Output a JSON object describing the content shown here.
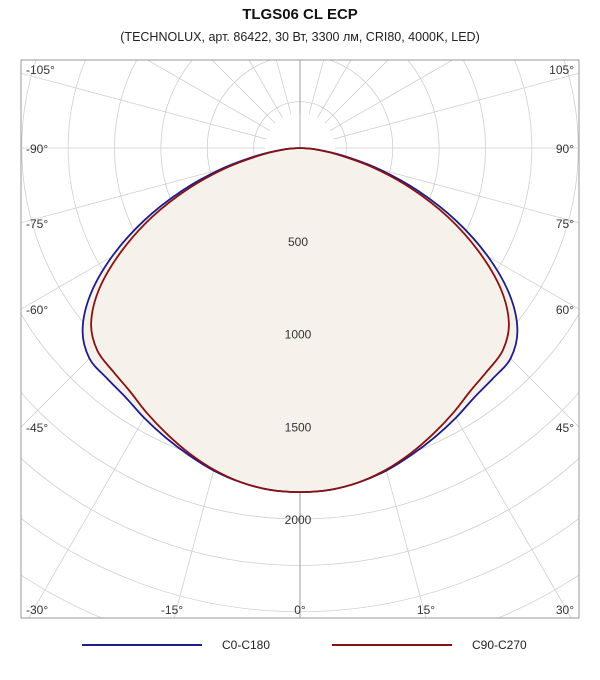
{
  "title": "TLGS06 CL ECP",
  "subtitle": "(TECHNOLUX, арт. 86422, 30 Вт, 3300 лм, CRI80, 4000K, LED)",
  "chart_data": {
    "type": "polar",
    "title": "TLGS06 CL ECP",
    "subtitle": "(TECHNOLUX, арт. 86422, 30 Вт, 3300 лм, CRI80, 4000K, LED)",
    "radial_ticks": [
      500,
      1000,
      1500,
      2000
    ],
    "radial_tick_labels": [
      "500",
      "1000",
      "1500",
      "2000"
    ],
    "angle_labels": {
      "left": [
        "-105°",
        "-90°",
        "-75°",
        "-60°",
        "-45°",
        "-30°",
        "-15°"
      ],
      "right": [
        "105°",
        "90°",
        "75°",
        "60°",
        "45°",
        "30°",
        "15°"
      ],
      "center": "0°"
    },
    "fill_color": "#f6f1ea",
    "grid": true,
    "legend_position": "bottom",
    "series": [
      {
        "name": "C0-C180",
        "color": "#1c1c8c",
        "angles": [
          0,
          5,
          10,
          15,
          20,
          25,
          30,
          35,
          40,
          45,
          50,
          55,
          60,
          65,
          70,
          75,
          80,
          85,
          90
        ],
        "values": [
          1855,
          1850,
          1830,
          1800,
          1760,
          1720,
          1680,
          1640,
          1620,
          1605,
          1530,
          1380,
          1170,
          930,
          680,
          440,
          230,
          90,
          0
        ]
      },
      {
        "name": "C90-C270",
        "color": "#8b1111",
        "angles": [
          0,
          5,
          10,
          15,
          20,
          25,
          30,
          35,
          40,
          45,
          50,
          55,
          60,
          65,
          70,
          75,
          80,
          85,
          90
        ],
        "values": [
          1855,
          1850,
          1830,
          1795,
          1750,
          1700,
          1650,
          1600,
          1570,
          1545,
          1470,
          1320,
          1110,
          880,
          640,
          410,
          210,
          80,
          0
        ]
      }
    ]
  }
}
